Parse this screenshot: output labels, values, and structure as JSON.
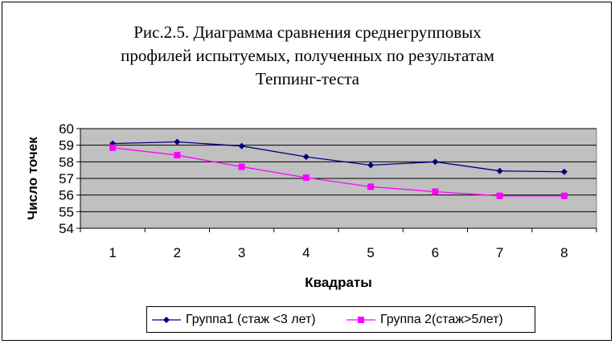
{
  "chart_data": {
    "type": "line",
    "title": "Рис.2.5.   Диаграмма сравнения среднегрупповых\nпрофилей испытуемых, полученных по результатам\nТеппинг-теста",
    "xlabel": "Квадраты",
    "ylabel": "Число точек",
    "categories": [
      "1",
      "2",
      "3",
      "4",
      "5",
      "6",
      "7",
      "8"
    ],
    "y_ticks": [
      "54",
      "55",
      "56",
      "57",
      "58",
      "59",
      "60"
    ],
    "ylim": [
      54,
      60
    ],
    "grid": true,
    "plot_background": "#c0c0c0",
    "legend_position": "bottom",
    "series": [
      {
        "name": "Группа1 (стаж <3 лет)",
        "color": "#000080",
        "marker": "diamond",
        "values": [
          59.1,
          59.2,
          58.95,
          58.3,
          57.8,
          58.0,
          57.45,
          57.4
        ]
      },
      {
        "name": "Группа 2(стаж>5лет)",
        "color": "#ff00ff",
        "marker": "square",
        "values": [
          58.85,
          58.4,
          57.7,
          57.05,
          56.5,
          56.2,
          55.95,
          55.95
        ]
      }
    ]
  }
}
